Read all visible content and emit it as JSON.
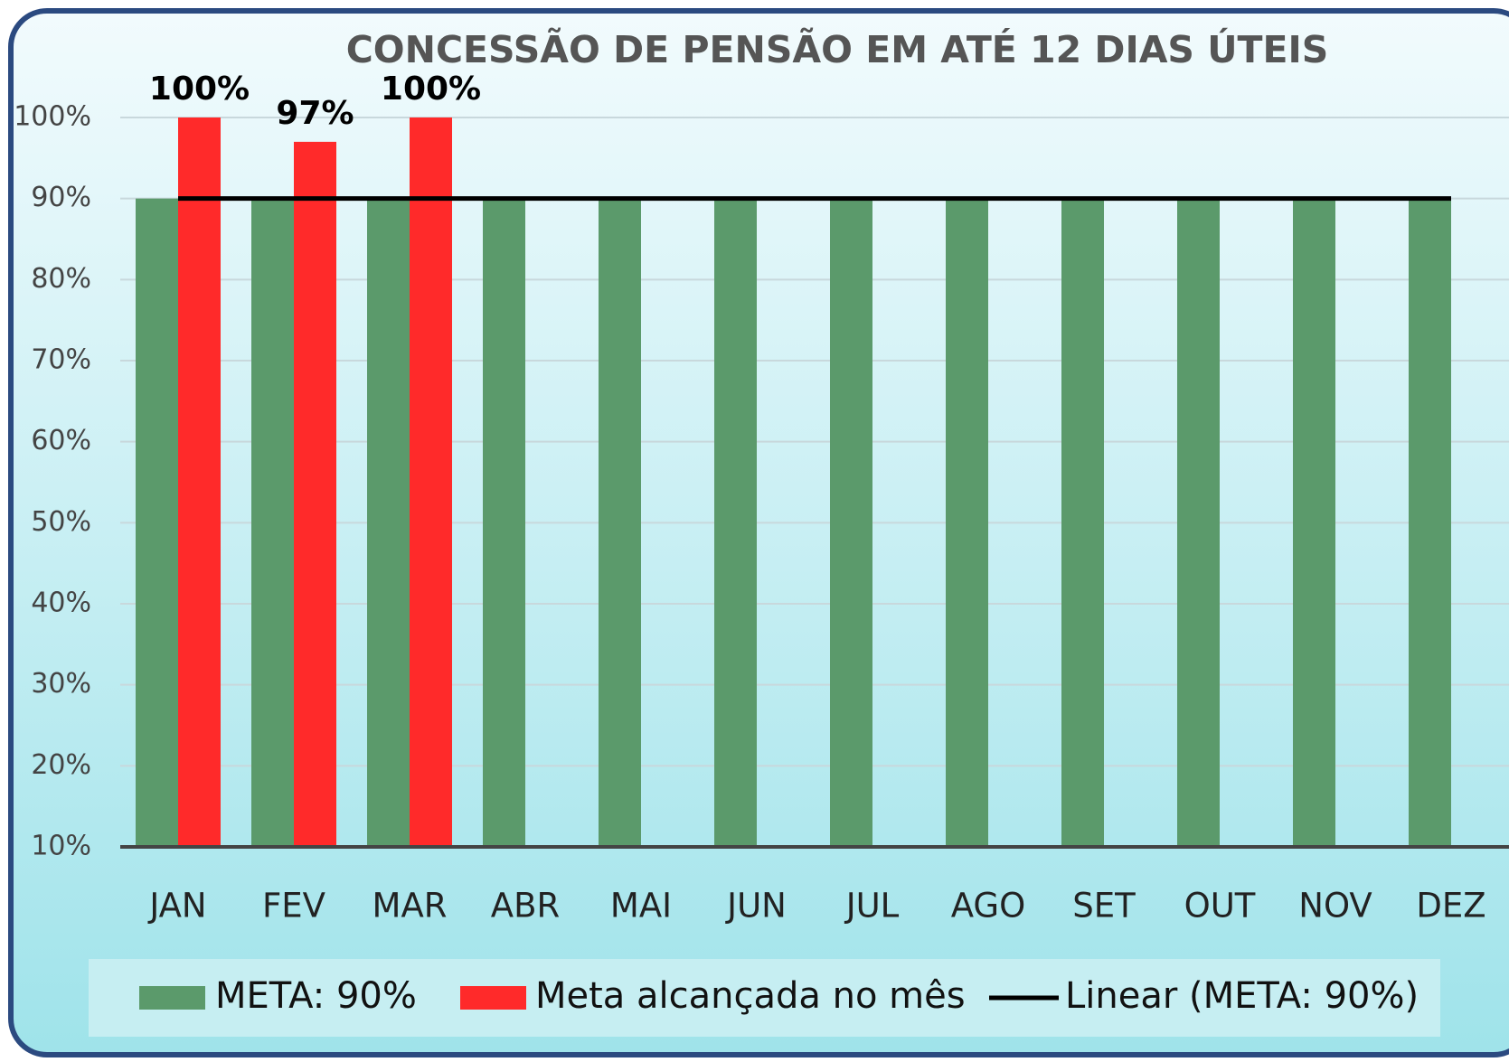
{
  "chart_data": {
    "type": "bar",
    "title": "CONCESSÃO DE PENSÃO EM ATÉ 12 DIAS ÚTEIS",
    "categories": [
      "JAN",
      "FEV",
      "MAR",
      "ABR",
      "MAI",
      "JUN",
      "JUL",
      "AGO",
      "SET",
      "OUT",
      "NOV",
      "DEZ"
    ],
    "series": [
      {
        "name": "META: 90%",
        "color": "#5b9a6b",
        "values": [
          90,
          90,
          90,
          90,
          90,
          90,
          90,
          90,
          90,
          90,
          90,
          90
        ]
      },
      {
        "name": "Meta alcançada no mês",
        "color": "#ff2a2a",
        "values": [
          100,
          97,
          100,
          null,
          null,
          null,
          null,
          null,
          null,
          null,
          null,
          null
        ],
        "value_labels": [
          "100%",
          "97%",
          "100%",
          null,
          null,
          null,
          null,
          null,
          null,
          null,
          null,
          null
        ]
      },
      {
        "name": "Linear (META: 90%)",
        "type": "line",
        "color": "#000000",
        "values": [
          90,
          90,
          90,
          90,
          90,
          90,
          90,
          90,
          90,
          90,
          90,
          90
        ]
      }
    ],
    "ylim": [
      10,
      100
    ],
    "yticks": [
      {
        "value": 10,
        "label": "10%"
      },
      {
        "value": 20,
        "label": "20%"
      },
      {
        "value": 30,
        "label": "30%"
      },
      {
        "value": 40,
        "label": "40%"
      },
      {
        "value": 50,
        "label": "50%"
      },
      {
        "value": 60,
        "label": "60%"
      },
      {
        "value": 70,
        "label": "70%"
      },
      {
        "value": 80,
        "label": "80%"
      },
      {
        "value": 90,
        "label": "90%"
      },
      {
        "value": 100,
        "label": "100%"
      }
    ],
    "grid": true,
    "legend": "bottom"
  }
}
